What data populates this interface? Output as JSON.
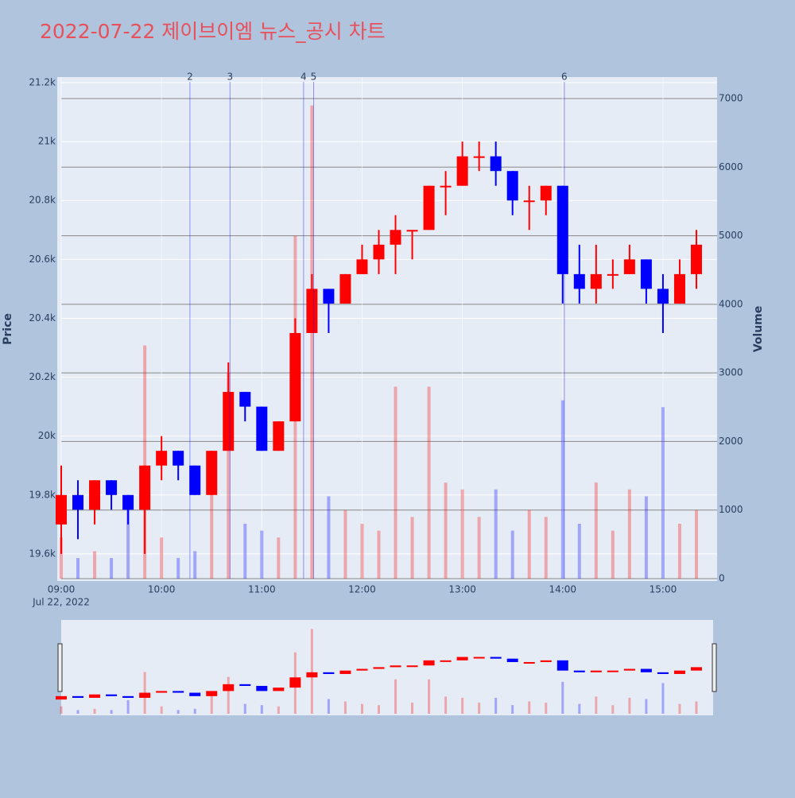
{
  "chart_data": {
    "type": "candlestick",
    "title": "2022-07-22 제이브이엠 뉴스_공시 차트",
    "x": [
      "09:00",
      "09:10",
      "09:20",
      "09:30",
      "09:40",
      "09:50",
      "10:00",
      "10:10",
      "10:20",
      "10:30",
      "10:40",
      "10:50",
      "11:00",
      "11:10",
      "11:20",
      "11:30",
      "11:40",
      "11:50",
      "12:00",
      "12:10",
      "12:20",
      "12:30",
      "12:40",
      "12:50",
      "13:00",
      "13:10",
      "13:20",
      "13:30",
      "13:40",
      "13:50",
      "14:00",
      "14:10",
      "14:20",
      "14:30",
      "14:40",
      "14:50",
      "15:00",
      "15:10",
      "15:20"
    ],
    "open": [
      19700,
      19800,
      19750,
      19850,
      19800,
      19750,
      19900,
      19950,
      19900,
      19800,
      19950,
      20150,
      20100,
      19950,
      20050,
      20350,
      20500,
      20450,
      20550,
      20600,
      20650,
      20700,
      20700,
      20850,
      20850,
      20950,
      20950,
      20900,
      20800,
      20800,
      20850,
      20550,
      20500,
      20550,
      20550,
      20600,
      20500,
      20450,
      20550
    ],
    "high": [
      19900,
      19850,
      19850,
      19850,
      19800,
      19900,
      20000,
      19950,
      19900,
      19950,
      20250,
      20150,
      20100,
      20050,
      20400,
      20550,
      20500,
      20550,
      20650,
      20700,
      20750,
      20700,
      20850,
      20900,
      21000,
      21000,
      21000,
      20900,
      20850,
      20850,
      20850,
      20650,
      20650,
      20600,
      20650,
      20600,
      20550,
      20600,
      20700
    ],
    "low": [
      19600,
      19650,
      19700,
      19750,
      19700,
      19600,
      19850,
      19850,
      19800,
      19800,
      19950,
      20050,
      19950,
      19950,
      20050,
      20350,
      20350,
      20450,
      20550,
      20550,
      20550,
      20600,
      20700,
      20750,
      20850,
      20900,
      20850,
      20750,
      20700,
      20750,
      20450,
      20450,
      20450,
      20500,
      20550,
      20450,
      20350,
      20450,
      20500
    ],
    "close": [
      19800,
      19750,
      19850,
      19800,
      19750,
      19900,
      19950,
      19900,
      19800,
      19950,
      20150,
      20100,
      19950,
      20050,
      20350,
      20500,
      20450,
      20550,
      20600,
      20650,
      20700,
      20700,
      20850,
      20850,
      20950,
      20950,
      20900,
      20800,
      20800,
      20850,
      20550,
      20500,
      20550,
      20550,
      20600,
      20500,
      20450,
      20550,
      20650
    ],
    "volume": [
      600,
      300,
      400,
      300,
      1100,
      3400,
      600,
      300,
      400,
      1500,
      3000,
      800,
      700,
      600,
      5000,
      6900,
      1200,
      1000,
      800,
      700,
      2800,
      900,
      2800,
      1400,
      1300,
      900,
      1300,
      700,
      1000,
      900,
      2600,
      800,
      1400,
      700,
      1300,
      1200,
      2500,
      800,
      1000
    ],
    "increasing_color": "#ff0000",
    "decreasing_color": "#0000ff",
    "news": [
      {
        "x": "10:17",
        "label": "2"
      },
      {
        "x": "10:41",
        "label": "3"
      },
      {
        "x": "11:25",
        "label": "4"
      },
      {
        "x": "11:31",
        "label": "5"
      },
      {
        "x": "14:01",
        "label": "6"
      }
    ],
    "xlim": [
      "09:00",
      "15:30"
    ],
    "xticks": [
      "09:00",
      "10:00",
      "11:00",
      "12:00",
      "13:00",
      "14:00",
      "15:00"
    ],
    "x_date_label": "Jul 22, 2022",
    "ylabel": "Price",
    "ylim": [
      19516,
      21219
    ],
    "yticks": [
      {
        "value": 19600,
        "label": "19.6k"
      },
      {
        "value": 19800,
        "label": "19.8k"
      },
      {
        "value": 20000,
        "label": "20k"
      },
      {
        "value": 20200,
        "label": "20.2k"
      },
      {
        "value": 20400,
        "label": "20.4k"
      },
      {
        "value": 20600,
        "label": "20.6k"
      },
      {
        "value": 20800,
        "label": "20.8k"
      },
      {
        "value": 21000,
        "label": "21k"
      },
      {
        "value": 21200,
        "label": "21.2k"
      }
    ],
    "y2label": "Volume",
    "y2lim": [
      0,
      7313
    ],
    "y2ticks": [
      0,
      1000,
      2000,
      3000,
      4000,
      5000,
      6000,
      7000
    ]
  }
}
